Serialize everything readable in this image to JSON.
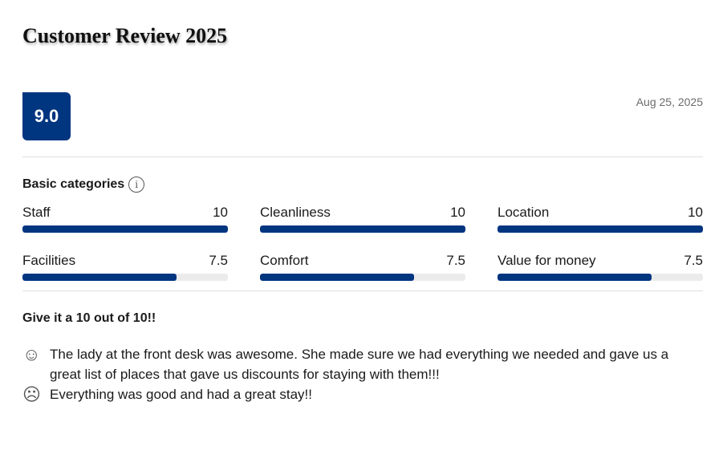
{
  "title": "Customer Review 2025",
  "score": "9.0",
  "date": "Aug 25, 2025",
  "categories_heading": "Basic categories",
  "categories": [
    {
      "label": "Staff",
      "score": "10",
      "value": 10
    },
    {
      "label": "Cleanliness",
      "score": "10",
      "value": 10
    },
    {
      "label": "Location",
      "score": "10",
      "value": 10
    },
    {
      "label": "Facilities",
      "score": "7.5",
      "value": 7.5
    },
    {
      "label": "Comfort",
      "score": "7.5",
      "value": 7.5
    },
    {
      "label": "Value for money",
      "score": "7.5",
      "value": 7.5
    }
  ],
  "accent": "#003580",
  "review": {
    "title": "Give it a 10 out of 10!!",
    "positive": "The lady at the front desk was awesome. She made sure we had everything we needed and gave us a great list of places that gave us discounts for staying with them!!!",
    "negative": "Everything was good and had a great stay!!"
  }
}
